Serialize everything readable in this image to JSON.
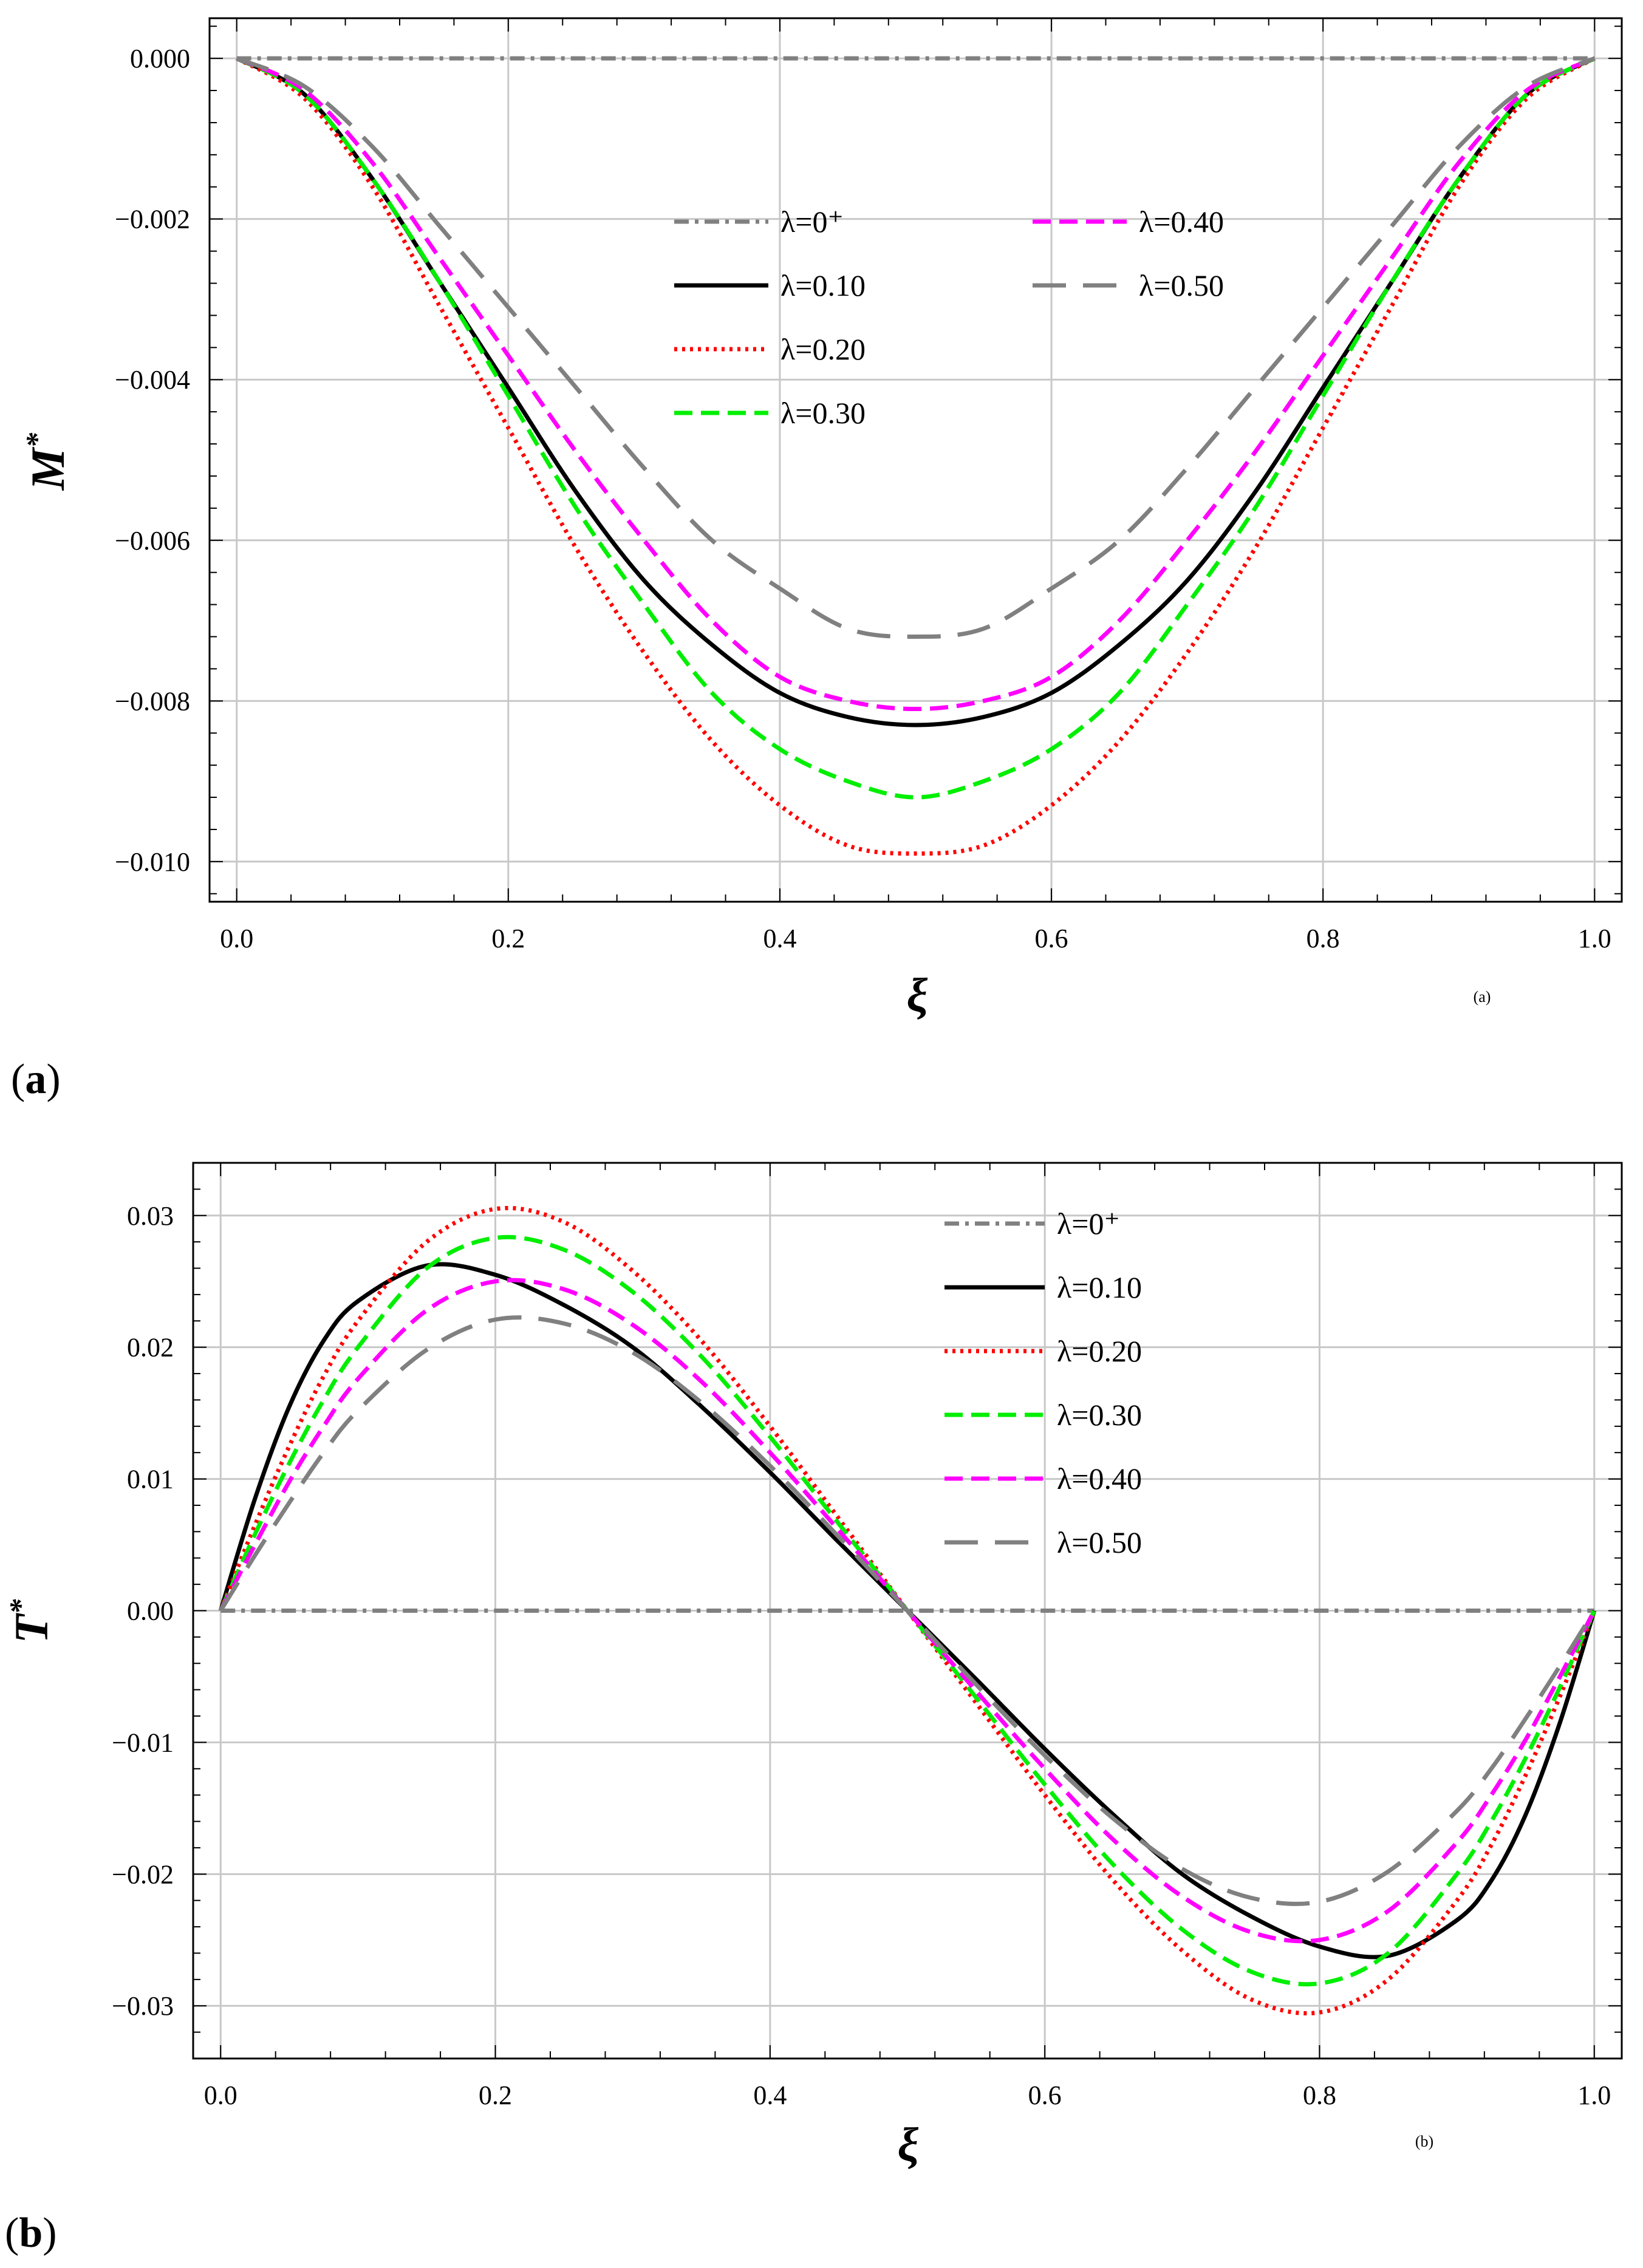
{
  "chart_data": [
    {
      "type": "line",
      "panel_label_open": "(",
      "panel_label_letter": "a",
      "panel_label_close": ")",
      "sub_tag": "(a)",
      "xlabel": "ξ",
      "ylabel_main": "M",
      "ylabel_sup": "*",
      "xlim": [
        -0.02,
        1.02
      ],
      "ylim": [
        -0.0105,
        0.0005
      ],
      "xticks": [
        0.0,
        0.2,
        0.4,
        0.6,
        0.8,
        1.0
      ],
      "xtick_labels": [
        "0.0",
        "0.2",
        "0.4",
        "0.6",
        "0.8",
        "1.0"
      ],
      "yticks": [
        0.0,
        -0.002,
        -0.004,
        -0.006,
        -0.008,
        -0.01
      ],
      "ytick_labels": [
        "0.000",
        "−0.002",
        "−0.004",
        "−0.006",
        "−0.008",
        "−0.010"
      ],
      "grid": true,
      "legend_position": "top-center, two columns",
      "x": [
        0.0,
        0.05,
        0.1,
        0.15,
        0.2,
        0.25,
        0.3,
        0.35,
        0.4,
        0.45,
        0.5,
        0.55,
        0.6,
        0.65,
        0.7,
        0.75,
        0.8,
        0.85,
        0.9,
        0.95,
        1.0
      ],
      "series": [
        {
          "name": "λ=0⁺",
          "color": "#808080",
          "dash": "dashdot",
          "values": [
            0,
            0,
            0,
            0,
            0,
            0,
            0,
            0,
            0,
            0,
            0,
            0,
            0,
            0,
            0,
            0,
            0,
            0,
            0,
            0,
            0
          ]
        },
        {
          "name": "λ=0.10",
          "color": "#000000",
          "dash": "solid",
          "values": [
            0.0,
            -0.00045,
            -0.0015,
            -0.0028,
            -0.0041,
            -0.0054,
            -0.0065,
            -0.0073,
            -0.0079,
            -0.0082,
            -0.0083,
            -0.0082,
            -0.0079,
            -0.0073,
            -0.0065,
            -0.0054,
            -0.0041,
            -0.0028,
            -0.0015,
            -0.00045,
            0.0
          ]
        },
        {
          "name": "λ=0.20",
          "color": "#ff0000",
          "dash": "dotted",
          "values": [
            0.0,
            -0.0005,
            -0.0016,
            -0.0031,
            -0.0046,
            -0.0061,
            -0.0074,
            -0.0085,
            -0.0093,
            -0.0098,
            -0.0099,
            -0.0098,
            -0.0093,
            -0.0085,
            -0.0074,
            -0.0061,
            -0.0046,
            -0.0031,
            -0.0016,
            -0.0005,
            0.0
          ]
        },
        {
          "name": "λ=0.30",
          "color": "#00ee00",
          "dash": "dashed",
          "values": [
            0.0,
            -0.00045,
            -0.0015,
            -0.0028,
            -0.0042,
            -0.0056,
            -0.0068,
            -0.0079,
            -0.0086,
            -0.009,
            -0.0092,
            -0.009,
            -0.0086,
            -0.0079,
            -0.0068,
            -0.0056,
            -0.0042,
            -0.0028,
            -0.0015,
            -0.00045,
            0.0
          ]
        },
        {
          "name": "λ=0.40",
          "color": "#ff00ff",
          "dash": "dashed",
          "values": [
            0.0,
            -0.0004,
            -0.0013,
            -0.0025,
            -0.0037,
            -0.0049,
            -0.006,
            -0.007,
            -0.0077,
            -0.008,
            -0.0081,
            -0.008,
            -0.0077,
            -0.007,
            -0.006,
            -0.0049,
            -0.0037,
            -0.0025,
            -0.0013,
            -0.0004,
            0.0
          ]
        },
        {
          "name": "λ=0.50",
          "color": "#808080",
          "dash": "longdash",
          "values": [
            0.0,
            -0.00035,
            -0.0011,
            -0.0021,
            -0.0031,
            -0.0041,
            -0.0051,
            -0.006,
            -0.0066,
            -0.0071,
            -0.0072,
            -0.0071,
            -0.0066,
            -0.006,
            -0.0051,
            -0.0041,
            -0.0031,
            -0.0021,
            -0.0011,
            -0.00035,
            0.0
          ]
        }
      ]
    },
    {
      "type": "line",
      "panel_label_open": "(",
      "panel_label_letter": "b",
      "panel_label_close": ")",
      "sub_tag": "(b)",
      "xlabel": "ξ",
      "ylabel_main": "T",
      "ylabel_sup": "*",
      "xlim": [
        -0.02,
        1.02
      ],
      "ylim": [
        -0.034,
        0.034
      ],
      "xticks": [
        0.0,
        0.2,
        0.4,
        0.6,
        0.8,
        1.0
      ],
      "xtick_labels": [
        "0.0",
        "0.2",
        "0.4",
        "0.6",
        "0.8",
        "1.0"
      ],
      "yticks": [
        0.03,
        0.02,
        0.01,
        0.0,
        -0.01,
        -0.02,
        -0.03
      ],
      "ytick_labels": [
        "0.03",
        "0.02",
        "0.01",
        "0.00",
        "−0.01",
        "−0.02",
        "−0.03"
      ],
      "grid": true,
      "legend_position": "top-right, one column",
      "x": [
        0.0,
        0.025,
        0.05,
        0.075,
        0.1,
        0.15,
        0.2,
        0.25,
        0.3,
        0.35,
        0.4,
        0.45,
        0.5,
        0.55,
        0.6,
        0.65,
        0.7,
        0.75,
        0.8,
        0.85,
        0.9,
        0.925,
        0.95,
        0.975,
        1.0
      ],
      "series": [
        {
          "name": "λ=0⁺",
          "color": "#808080",
          "dash": "dashdot",
          "values": [
            0,
            0,
            0,
            0,
            0,
            0,
            0,
            0,
            0,
            0,
            0,
            0,
            0,
            0,
            0,
            0,
            0,
            0,
            0,
            0,
            0,
            0,
            0,
            0,
            0
          ]
        },
        {
          "name": "λ=0.10",
          "color": "#000000",
          "dash": "solid",
          "values": [
            0.0,
            0.0085,
            0.0155,
            0.0205,
            0.0235,
            0.0262,
            0.0255,
            0.0232,
            0.02,
            0.0155,
            0.0105,
            0.0052,
            0.0,
            -0.0052,
            -0.0105,
            -0.0155,
            -0.02,
            -0.0232,
            -0.0255,
            -0.0262,
            -0.0235,
            -0.0205,
            -0.0155,
            -0.0085,
            0.0
          ]
        },
        {
          "name": "λ=0.20",
          "color": "#ff0000",
          "dash": "dotted",
          "values": [
            0.0,
            0.0065,
            0.0125,
            0.0178,
            0.022,
            0.028,
            0.0305,
            0.0295,
            0.0258,
            0.0205,
            0.014,
            0.007,
            0.0,
            -0.007,
            -0.014,
            -0.0205,
            -0.0258,
            -0.0295,
            -0.0305,
            -0.028,
            -0.022,
            -0.0178,
            -0.0125,
            -0.0065,
            0.0
          ]
        },
        {
          "name": "λ=0.30",
          "color": "#00ee00",
          "dash": "dashed",
          "values": [
            0.0,
            0.0058,
            0.0112,
            0.016,
            0.02,
            0.026,
            0.0283,
            0.0274,
            0.0242,
            0.0193,
            0.0132,
            0.0066,
            0.0,
            -0.0066,
            -0.0132,
            -0.0193,
            -0.0242,
            -0.0274,
            -0.0283,
            -0.026,
            -0.02,
            -0.016,
            -0.0112,
            -0.0058,
            0.0
          ]
        },
        {
          "name": "λ=0.40",
          "color": "#ff00ff",
          "dash": "dashed",
          "values": [
            0.0,
            0.005,
            0.0098,
            0.014,
            0.0176,
            0.0228,
            0.025,
            0.0244,
            0.0217,
            0.0174,
            0.012,
            0.0061,
            0.0,
            -0.0061,
            -0.012,
            -0.0174,
            -0.0217,
            -0.0244,
            -0.025,
            -0.0228,
            -0.0176,
            -0.014,
            -0.0098,
            -0.005,
            0.0
          ]
        },
        {
          "name": "λ=0.50",
          "color": "#808080",
          "dash": "longdash",
          "values": [
            0.0,
            0.0042,
            0.0082,
            0.012,
            0.0152,
            0.0198,
            0.0221,
            0.0218,
            0.0196,
            0.0158,
            0.011,
            0.0056,
            0.0,
            -0.0056,
            -0.011,
            -0.0158,
            -0.0196,
            -0.0218,
            -0.0221,
            -0.0198,
            -0.0152,
            -0.012,
            -0.0082,
            -0.0042,
            0.0
          ]
        }
      ]
    }
  ]
}
